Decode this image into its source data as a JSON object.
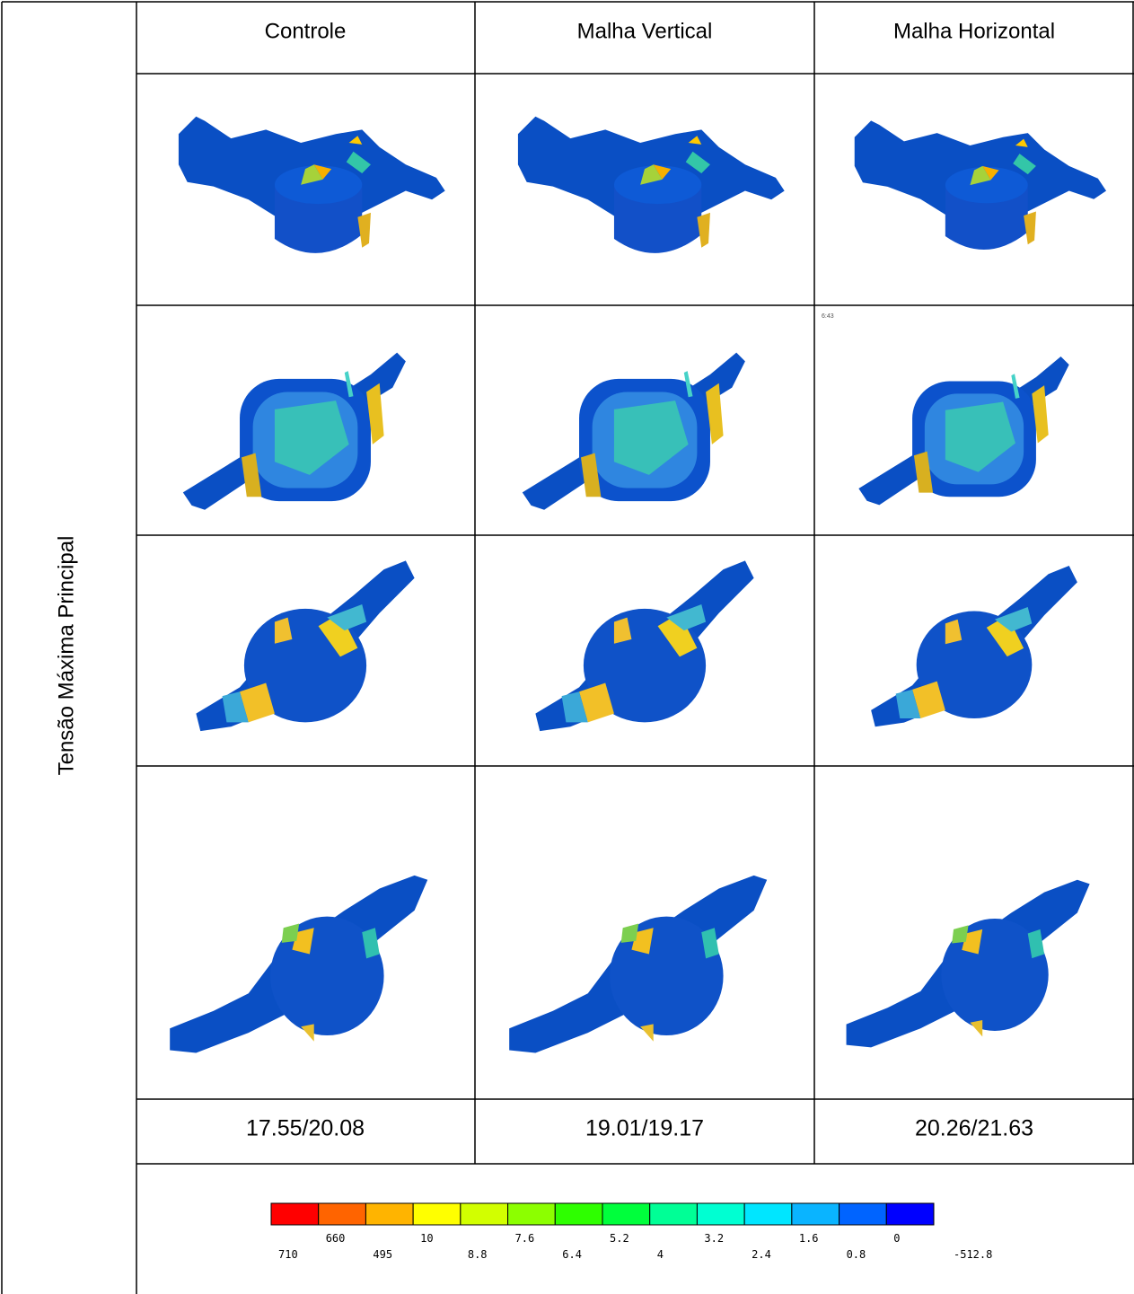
{
  "table": {
    "row_label": "Tensão Máxima Principal",
    "columns": [
      "Controle",
      "Malha Vertical",
      "Malha Horizontal"
    ],
    "values": [
      "17.55/20.08",
      "19.01/19.17",
      "20.26/21.63"
    ],
    "note": "6:43"
  },
  "legend": {
    "colors": [
      "#ff0000",
      "#ff6400",
      "#ffb400",
      "#ffff00",
      "#d2ff00",
      "#8cff00",
      "#2eff00",
      "#00ff3c",
      "#00ff96",
      "#00ffd2",
      "#00e6ff",
      "#0ab4ff",
      "#0064ff",
      "#0000ff"
    ],
    "labels": [
      "710",
      "660",
      "495",
      "10",
      "8.8",
      "7.6",
      "6.4",
      "5.2",
      "4",
      "3.2",
      "2.4",
      "1.6",
      "0.8",
      "0",
      "-512.8"
    ]
  }
}
